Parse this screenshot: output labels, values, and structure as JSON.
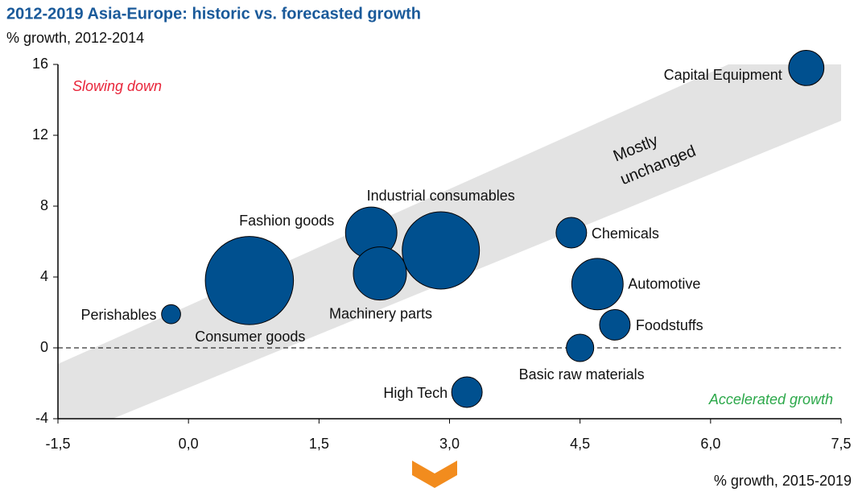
{
  "chart_data": {
    "type": "bubble",
    "title": "2012-2019 Asia-Europe:  historic vs. forecasted growth",
    "y_label": "% growth, 2012-2014",
    "x_label": "% growth, 2015-2019",
    "annotations": {
      "top_left": "Slowing down",
      "bottom_right": "Accelerated growth",
      "band": [
        "Mostly",
        "unchanged"
      ]
    },
    "color": "#00508f",
    "series": [
      {
        "name": "Sectors",
        "labels": [
          "Capital Equipment",
          "Fashion goods",
          "Industrial consumables",
          "Machinery parts",
          "Consumer goods",
          "Perishables",
          "Chemicals",
          "Automotive",
          "Foodstuffs",
          "Basic raw materials",
          "High Tech"
        ],
        "x": [
          7.1,
          2.1,
          2.9,
          2.2,
          0.7,
          -0.2,
          4.4,
          4.7,
          4.9,
          4.5,
          3.2
        ],
        "values": [
          15.8,
          6.5,
          5.5,
          4.2,
          3.8,
          1.9,
          6.5,
          3.6,
          1.3,
          0,
          -2.5
        ],
        "sizes": [
          4.8,
          10.2,
          23,
          10.9,
          30,
          1.4,
          3.6,
          10.2,
          3.6,
          2.9,
          3.6
        ]
      }
    ],
    "xlim": [
      -1.5,
      7.5
    ],
    "xticks": [
      {
        "value": -1.5,
        "label": "-1,5"
      },
      {
        "value": 0,
        "label": "0,0"
      },
      {
        "value": 1.5,
        "label": "1,5"
      },
      {
        "value": 3,
        "label": "3,0"
      },
      {
        "value": 4.5,
        "label": "4,5"
      },
      {
        "value": 6,
        "label": "6,0"
      },
      {
        "value": 7.5,
        "label": "7,5"
      }
    ],
    "ylim": [
      -4,
      16
    ],
    "yticks": [
      -4,
      0,
      4,
      8,
      12,
      16
    ]
  }
}
